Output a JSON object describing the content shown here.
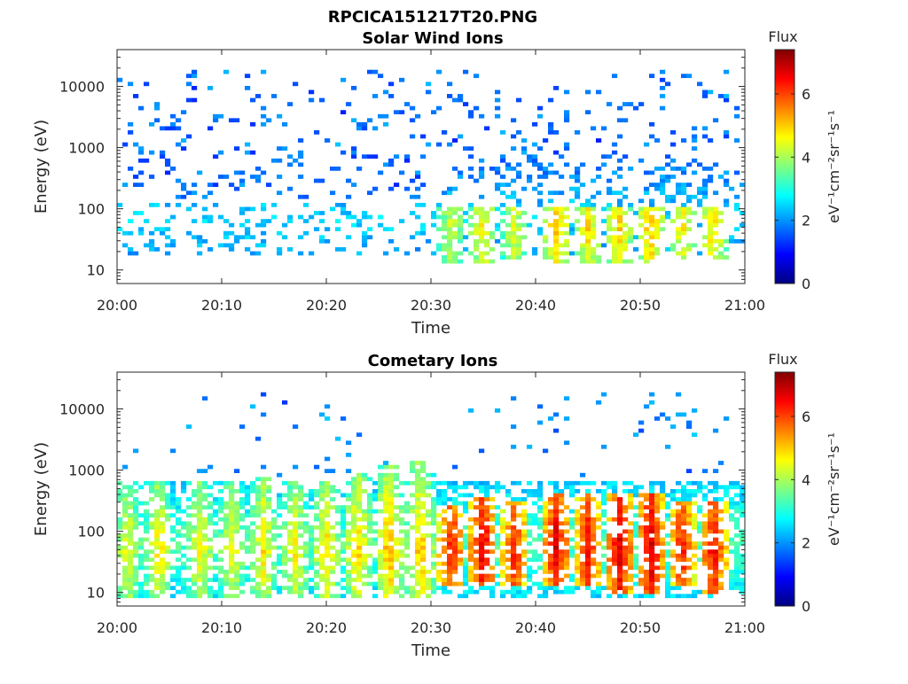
{
  "figure_title": "RPCICA151217T20.PNG",
  "colormap": "jet",
  "chart_data": [
    {
      "type": "heatmap",
      "title": "Solar Wind Ions",
      "xlabel": "Time",
      "ylabel": "Energy (eV)",
      "x_range": [
        "20:00",
        "21:00"
      ],
      "x_ticks": [
        "20:00",
        "20:10",
        "20:20",
        "20:30",
        "20:40",
        "20:50",
        "21:00"
      ],
      "y_scale": "log",
      "y_range": [
        6,
        40000
      ],
      "y_ticks": [
        {
          "value": 10,
          "label": "10"
        },
        {
          "value": 100,
          "label": "100"
        },
        {
          "value": 1000,
          "label": "1000"
        },
        {
          "value": 10000,
          "label": "10000"
        }
      ],
      "colorbar": {
        "title": "Flux",
        "label": "eV⁻¹cm⁻²sr⁻¹s⁻¹",
        "range": [
          0,
          7.4
        ],
        "ticks": [
          0,
          2,
          4,
          6
        ]
      },
      "background_level": 1.4,
      "steady_band": {
        "low": 18,
        "high": 700,
        "level": 2.5
      },
      "bursts": [
        {
          "time": "20:32",
          "low": 12,
          "high": 110,
          "peak": 4.4
        },
        {
          "time": "20:35",
          "low": 12,
          "high": 110,
          "peak": 4.8
        },
        {
          "time": "20:38",
          "low": 14,
          "high": 100,
          "peak": 4.5
        },
        {
          "time": "20:42",
          "low": 12,
          "high": 110,
          "peak": 5.2
        },
        {
          "time": "20:45",
          "low": 12,
          "high": 100,
          "peak": 4.9
        },
        {
          "time": "20:48",
          "low": 12,
          "high": 110,
          "peak": 5.0
        },
        {
          "time": "20:51",
          "low": 12,
          "high": 110,
          "peak": 5.2
        },
        {
          "time": "20:54",
          "low": 14,
          "high": 100,
          "peak": 4.8
        },
        {
          "time": "20:57",
          "low": 14,
          "high": 110,
          "peak": 5.0
        }
      ]
    },
    {
      "type": "heatmap",
      "title": "Cometary Ions",
      "xlabel": "Time",
      "ylabel": "Energy (eV)",
      "x_range": [
        "20:00",
        "21:00"
      ],
      "x_ticks": [
        "20:00",
        "20:10",
        "20:20",
        "20:30",
        "20:40",
        "20:50",
        "21:00"
      ],
      "y_scale": "log",
      "y_range": [
        6,
        40000
      ],
      "y_ticks": [
        {
          "value": 10,
          "label": "10"
        },
        {
          "value": 100,
          "label": "100"
        },
        {
          "value": 1000,
          "label": "1000"
        },
        {
          "value": 10000,
          "label": "10000"
        }
      ],
      "colorbar": {
        "title": "Flux",
        "label": "eV⁻¹cm⁻²sr⁻¹s⁻¹",
        "range": [
          0,
          7.4
        ],
        "ticks": [
          0,
          2,
          4,
          6
        ]
      },
      "background_level": 1.6,
      "steady_band": {
        "low": 8,
        "high": 700,
        "level": 3.4
      },
      "bursts": [
        {
          "time": "20:01",
          "low": 8,
          "high": 700,
          "peak": 4.6
        },
        {
          "time": "20:04",
          "low": 8,
          "high": 700,
          "peak": 4.8
        },
        {
          "time": "20:08",
          "low": 8,
          "high": 700,
          "peak": 4.7
        },
        {
          "time": "20:11",
          "low": 8,
          "high": 700,
          "peak": 4.6
        },
        {
          "time": "20:14",
          "low": 8,
          "high": 800,
          "peak": 4.8
        },
        {
          "time": "20:17",
          "low": 8,
          "high": 700,
          "peak": 4.7
        },
        {
          "time": "20:20",
          "low": 8,
          "high": 700,
          "peak": 4.9
        },
        {
          "time": "20:23",
          "low": 8,
          "high": 900,
          "peak": 5.0
        },
        {
          "time": "20:26",
          "low": 8,
          "high": 1200,
          "peak": 5.3
        },
        {
          "time": "20:29",
          "low": 8,
          "high": 1500,
          "peak": 5.2
        },
        {
          "time": "20:32",
          "low": 12,
          "high": 250,
          "peak": 6.4
        },
        {
          "time": "20:35",
          "low": 12,
          "high": 350,
          "peak": 6.8
        },
        {
          "time": "20:38",
          "low": 12,
          "high": 300,
          "peak": 6.3
        },
        {
          "time": "20:42",
          "low": 12,
          "high": 400,
          "peak": 6.8
        },
        {
          "time": "20:45",
          "low": 12,
          "high": 400,
          "peak": 6.5
        },
        {
          "time": "20:48",
          "low": 10,
          "high": 400,
          "peak": 6.9
        },
        {
          "time": "20:51",
          "low": 10,
          "high": 400,
          "peak": 6.9
        },
        {
          "time": "20:54",
          "low": 12,
          "high": 300,
          "peak": 6.4
        },
        {
          "time": "20:57",
          "low": 10,
          "high": 300,
          "peak": 6.6
        }
      ]
    }
  ]
}
